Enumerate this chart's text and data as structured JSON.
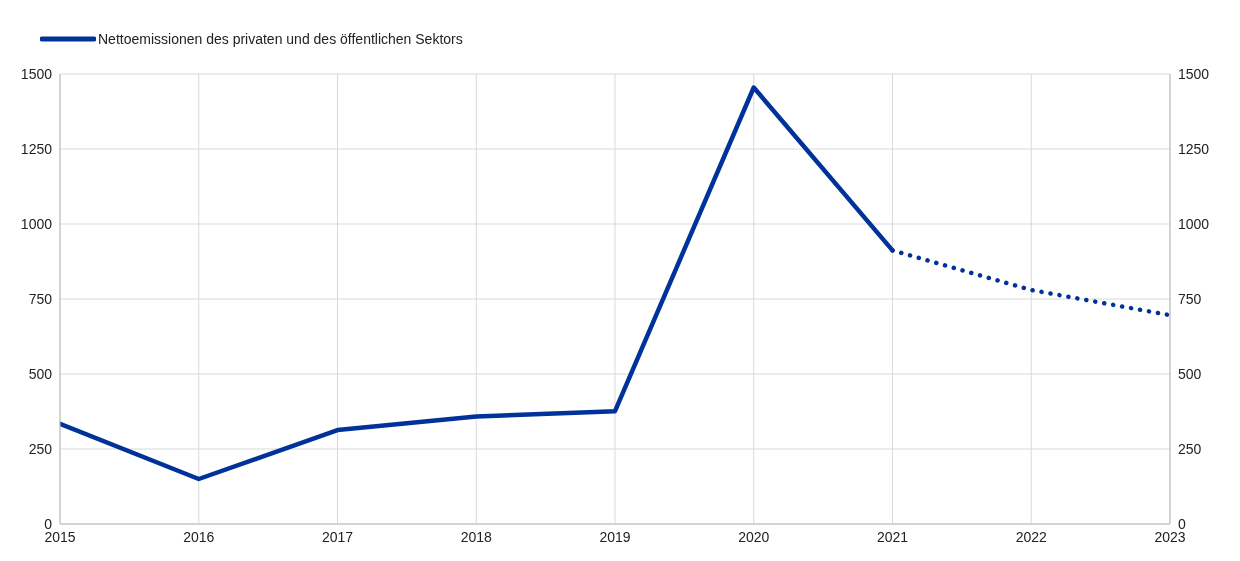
{
  "chart_data": {
    "type": "line",
    "xlim": [
      2015,
      2023
    ],
    "xticks": [
      2015,
      2016,
      2017,
      2018,
      2019,
      2020,
      2021,
      2022,
      2023
    ],
    "ylim": [
      0,
      1500
    ],
    "yticks": [
      0,
      250,
      500,
      750,
      1000,
      1250,
      1500
    ],
    "y2lim": [
      0,
      1500
    ],
    "y2ticks": [
      0,
      250,
      500,
      750,
      1000,
      1250,
      1500
    ],
    "grid": true,
    "legend": "top left",
    "series": [
      {
        "name": "Nettoemissionen des privaten und des öffentlichen Sektors",
        "color": "#003299",
        "line_style": "solid",
        "x": [
          2015,
          2016,
          2017,
          2018,
          2019,
          2020,
          2021
        ],
        "values": [
          334,
          150,
          313,
          358,
          376,
          1455,
          912
        ]
      },
      {
        "color": "#003299",
        "line_style": "dotted",
        "x": [
          2021,
          2022,
          2023
        ],
        "values": [
          912,
          780,
          696
        ]
      }
    ]
  }
}
